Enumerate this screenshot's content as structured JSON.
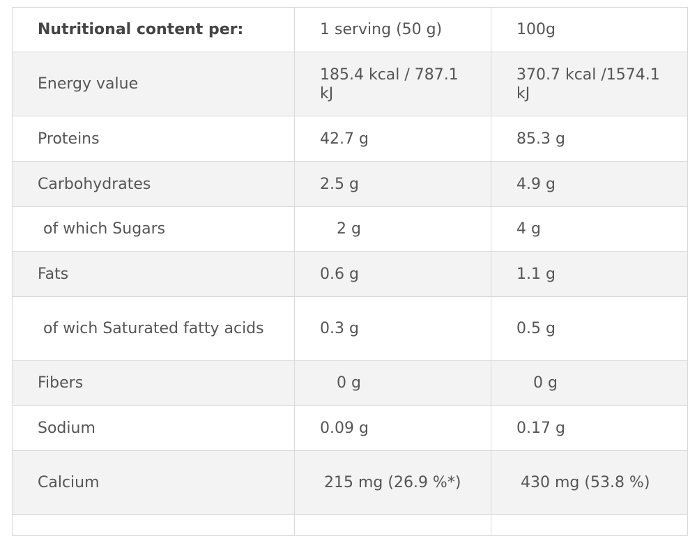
{
  "table": {
    "header": {
      "label": "Nutritional content per:",
      "col1": "1 serving (50 g)",
      "col2": "100g"
    },
    "rows": [
      {
        "label": "Energy value",
        "col1": "185.4 kcal / 787.1 kJ",
        "col2": "370.7 kcal /1574.1 kJ"
      },
      {
        "label": "Proteins",
        "col1": "42.7 g",
        "col2": "85.3 g"
      },
      {
        "label": "Carbohydrates",
        "col1": "2.5 g",
        "col2": "4.9 g"
      },
      {
        "label": "of which Sugars",
        "col1": "2 g",
        "col2": "4 g"
      },
      {
        "label": "Fats",
        "col1": "0.6 g",
        "col2": "1.1 g"
      },
      {
        "label": "of wich Saturated fatty acids",
        "col1": "0.3 g",
        "col2": "0.5 g"
      },
      {
        "label": "Fibers",
        "col1": "0 g",
        "col2": "0 g"
      },
      {
        "label": "Sodium",
        "col1": "0.09 g",
        "col2": "0.17 g"
      },
      {
        "label": "Calcium",
        "col1": "215 mg (26.9 %*)",
        "col2": "430 mg (53.8 %)"
      }
    ]
  }
}
